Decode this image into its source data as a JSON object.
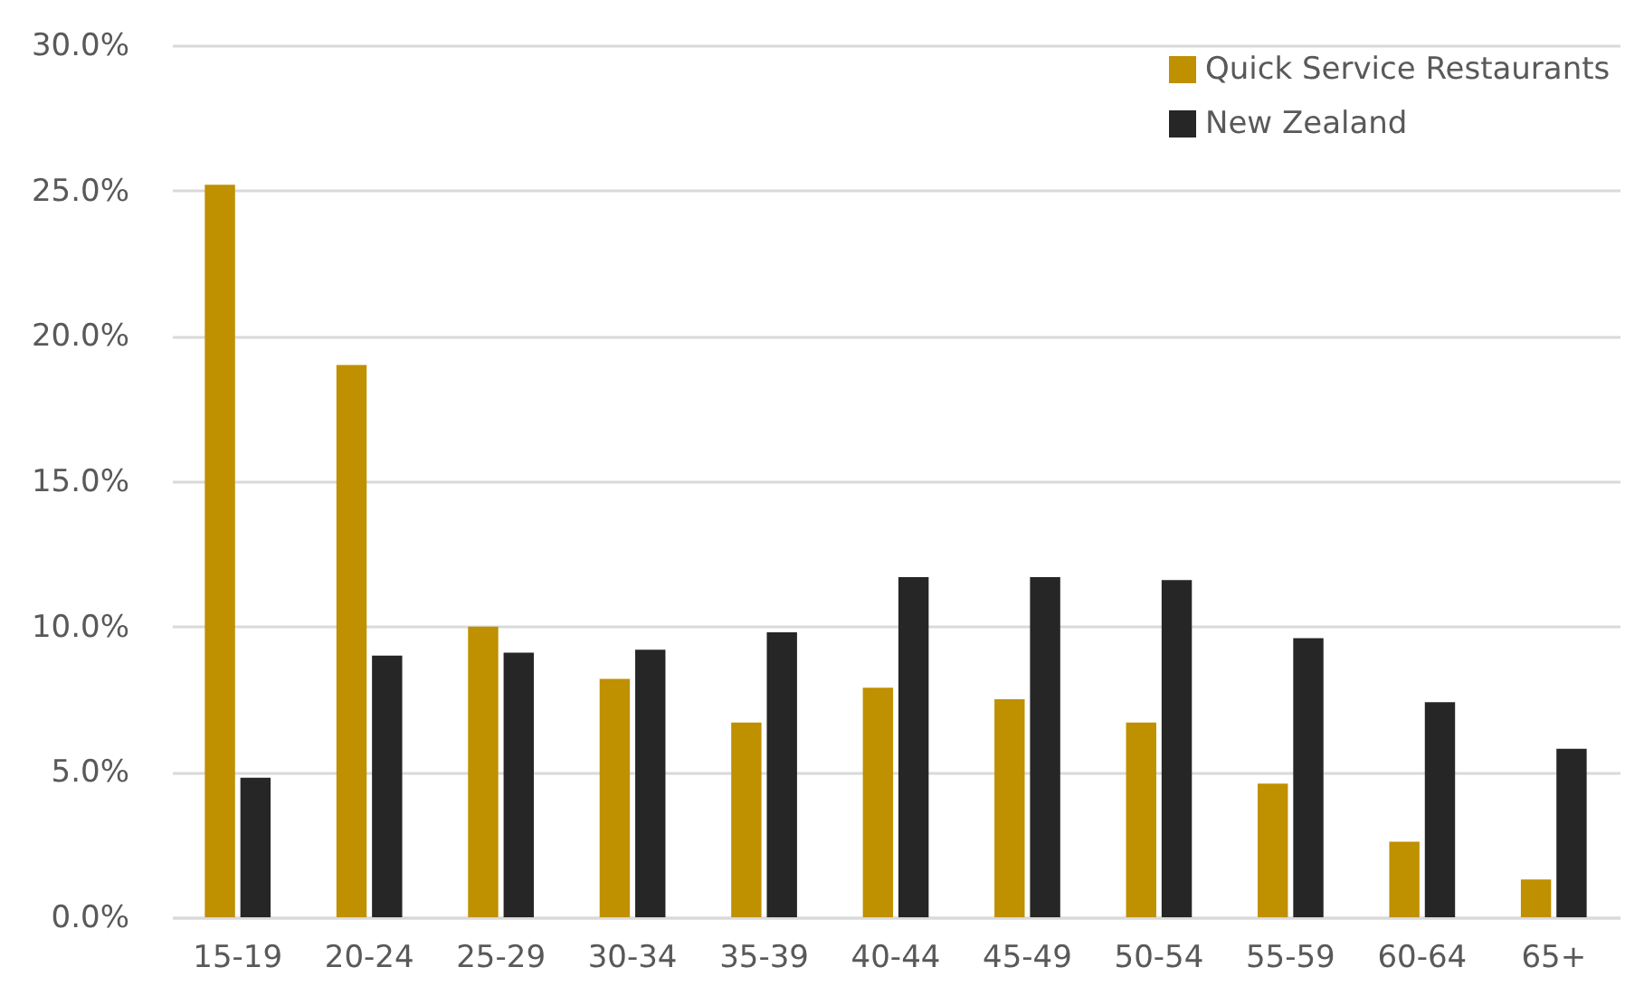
{
  "chart_data": {
    "type": "bar",
    "categories": [
      "15-19",
      "20-24",
      "25-29",
      "30-34",
      "35-39",
      "40-44",
      "45-49",
      "50-54",
      "55-59",
      "60-64",
      "65+"
    ],
    "series": [
      {
        "name": "Quick Service Restaurants",
        "color": "#bf9000",
        "values": [
          25.2,
          19.0,
          10.0,
          8.2,
          6.7,
          7.9,
          7.5,
          6.7,
          4.6,
          2.6,
          1.3
        ]
      },
      {
        "name": "New Zealand",
        "color": "#262626",
        "values": [
          4.8,
          9.0,
          9.1,
          9.2,
          9.8,
          11.7,
          11.7,
          11.6,
          9.6,
          7.4,
          5.8
        ]
      }
    ],
    "ylim": [
      0,
      30
    ],
    "yticks": [
      {
        "value": 0,
        "label": "0.0%"
      },
      {
        "value": 5,
        "label": "5.0%"
      },
      {
        "value": 10,
        "label": "10.0%"
      },
      {
        "value": 15,
        "label": "15.0%"
      },
      {
        "value": 20,
        "label": "20.0%"
      },
      {
        "value": 25,
        "label": "25.0%"
      },
      {
        "value": 30,
        "label": "30.0%"
      }
    ],
    "grid": "y",
    "legend": "top right"
  }
}
